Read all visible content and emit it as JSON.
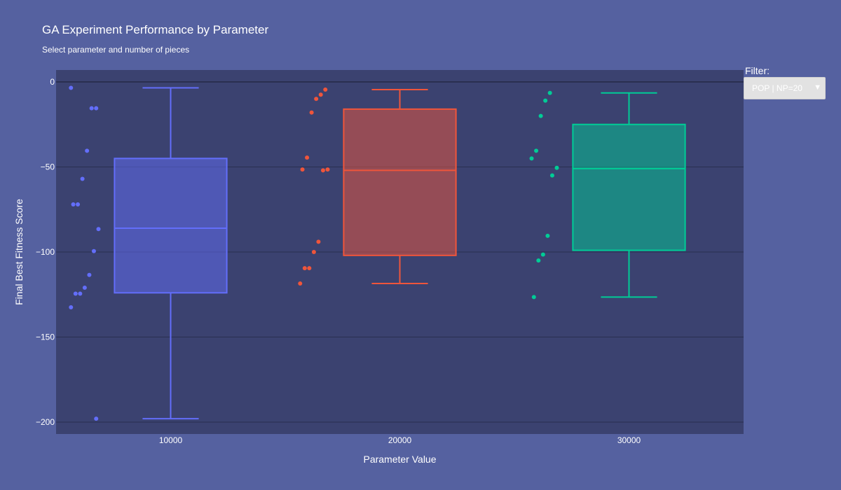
{
  "title": "GA Experiment Performance by Parameter",
  "subtitle": "Select parameter and number of pieces",
  "filter": {
    "label": "Filter:",
    "selected": "POP | NP=20",
    "arrow": "▼"
  },
  "colors": {
    "page_background": "#5561a0",
    "plot_background": "#3b4270",
    "grid": "#2a2f50"
  },
  "chart_data": {
    "type": "box",
    "xlabel": "Parameter Value",
    "ylabel": "Final Best Fitness Score",
    "ylim": [
      -207,
      7
    ],
    "yticks": [
      0,
      -50,
      -100,
      -150,
      -200
    ],
    "ytick_labels": [
      "0",
      "−50",
      "−100",
      "−150",
      "−200"
    ],
    "grid": true,
    "categories": [
      "10000",
      "20000",
      "30000"
    ],
    "series": [
      {
        "category": "10000",
        "color": "#636efa",
        "box": {
          "min": -198,
          "q1": -124,
          "median": -86,
          "q3": -45,
          "max": -3.5
        },
        "points": [
          -3.5,
          -15.5,
          -15.5,
          -40.5,
          -57,
          -72,
          -72,
          -86.5,
          -99.5,
          -113.5,
          -121,
          -124.5,
          -124.5,
          -132.5,
          -198
        ]
      },
      {
        "category": "20000",
        "color": "#ef553b",
        "box": {
          "min": -118.5,
          "q1": -102,
          "median": -52,
          "q3": -16,
          "max": -4.5
        },
        "points": [
          -4.5,
          -7.5,
          -10,
          -18,
          -44.5,
          -51.5,
          -51.5,
          -52,
          -94,
          -100,
          -109.5,
          -109.5,
          -118.5
        ]
      },
      {
        "category": "30000",
        "color": "#00cc96",
        "box": {
          "min": -126.5,
          "q1": -99,
          "median": -51,
          "q3": -25,
          "max": -6.5
        },
        "points": [
          -6.5,
          -11,
          -20,
          -40.5,
          -45,
          -50.5,
          -55,
          -90.5,
          -101.5,
          -105,
          -126.5
        ]
      }
    ]
  }
}
